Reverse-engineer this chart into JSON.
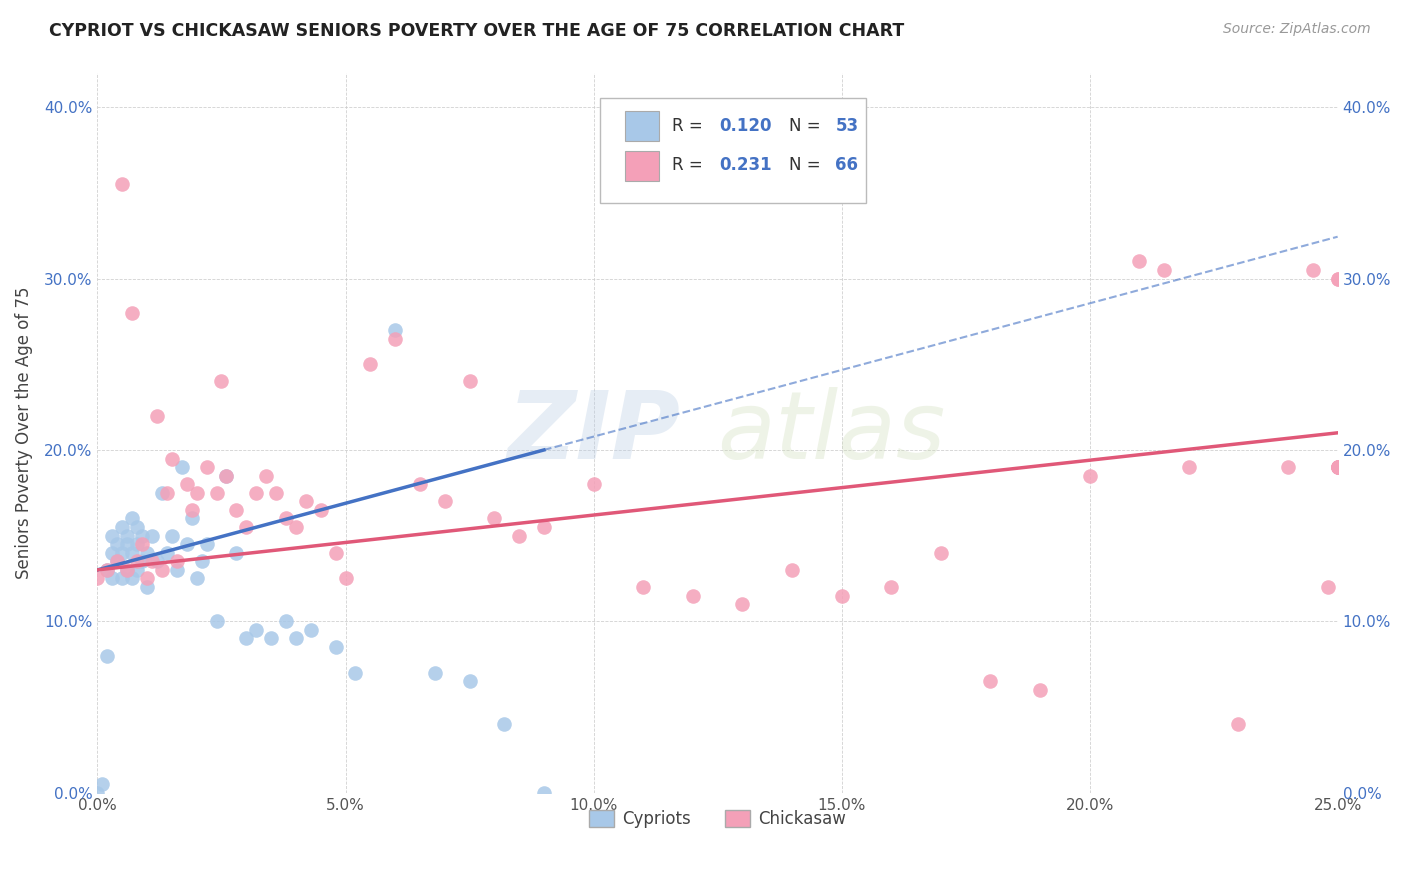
{
  "title": "CYPRIOT VS CHICKASAW SENIORS POVERTY OVER THE AGE OF 75 CORRELATION CHART",
  "source": "Source: ZipAtlas.com",
  "ylabel": "Seniors Poverty Over the Age of 75",
  "xlim": [
    0.0,
    0.25
  ],
  "ylim": [
    0.0,
    0.42
  ],
  "xticks": [
    0.0,
    0.05,
    0.1,
    0.15,
    0.2,
    0.25
  ],
  "yticks": [
    0.0,
    0.1,
    0.2,
    0.3,
    0.4
  ],
  "xtick_labels": [
    "0.0%",
    "5.0%",
    "10.0%",
    "15.0%",
    "20.0%",
    "25.0%"
  ],
  "ytick_labels": [
    "0.0%",
    "10.0%",
    "20.0%",
    "30.0%",
    "40.0%"
  ],
  "R_cypriot": 0.12,
  "N_cypriot": 53,
  "R_chickasaw": 0.231,
  "N_chickasaw": 66,
  "cypriot_color": "#a8c8e8",
  "chickasaw_color": "#f4a0b8",
  "trend_cypriot_color": "#4472c4",
  "trend_chickasaw_color": "#e05878",
  "watermark_zip": "ZIP",
  "watermark_atlas": "atlas",
  "background_color": "#ffffff",
  "cypriot_x": [
    0.0,
    0.001,
    0.002,
    0.002,
    0.003,
    0.003,
    0.003,
    0.004,
    0.004,
    0.005,
    0.005,
    0.005,
    0.006,
    0.006,
    0.006,
    0.007,
    0.007,
    0.007,
    0.008,
    0.008,
    0.008,
    0.009,
    0.009,
    0.01,
    0.01,
    0.011,
    0.012,
    0.013,
    0.014,
    0.015,
    0.016,
    0.017,
    0.018,
    0.019,
    0.02,
    0.021,
    0.022,
    0.024,
    0.026,
    0.028,
    0.03,
    0.032,
    0.035,
    0.038,
    0.04,
    0.043,
    0.048,
    0.052,
    0.06,
    0.068,
    0.075,
    0.082,
    0.09
  ],
  "cypriot_y": [
    0.0,
    0.005,
    0.08,
    0.13,
    0.14,
    0.15,
    0.125,
    0.145,
    0.135,
    0.125,
    0.14,
    0.155,
    0.145,
    0.13,
    0.15,
    0.14,
    0.125,
    0.16,
    0.13,
    0.145,
    0.155,
    0.135,
    0.15,
    0.14,
    0.12,
    0.15,
    0.135,
    0.175,
    0.14,
    0.15,
    0.13,
    0.19,
    0.145,
    0.16,
    0.125,
    0.135,
    0.145,
    0.1,
    0.185,
    0.14,
    0.09,
    0.095,
    0.09,
    0.1,
    0.09,
    0.095,
    0.085,
    0.07,
    0.27,
    0.07,
    0.065,
    0.04,
    0.0
  ],
  "chickasaw_x": [
    0.0,
    0.002,
    0.004,
    0.005,
    0.006,
    0.007,
    0.008,
    0.009,
    0.01,
    0.011,
    0.012,
    0.013,
    0.014,
    0.015,
    0.016,
    0.018,
    0.019,
    0.02,
    0.022,
    0.024,
    0.025,
    0.026,
    0.028,
    0.03,
    0.032,
    0.034,
    0.036,
    0.038,
    0.04,
    0.042,
    0.045,
    0.048,
    0.05,
    0.055,
    0.06,
    0.065,
    0.07,
    0.075,
    0.08,
    0.085,
    0.09,
    0.1,
    0.11,
    0.12,
    0.13,
    0.14,
    0.15,
    0.16,
    0.17,
    0.18,
    0.19,
    0.2,
    0.21,
    0.215,
    0.22,
    0.23,
    0.24,
    0.245,
    0.248,
    0.25,
    0.25,
    0.25,
    0.25,
    0.25,
    0.25,
    0.25
  ],
  "chickasaw_y": [
    0.125,
    0.13,
    0.135,
    0.355,
    0.13,
    0.28,
    0.135,
    0.145,
    0.125,
    0.135,
    0.22,
    0.13,
    0.175,
    0.195,
    0.135,
    0.18,
    0.165,
    0.175,
    0.19,
    0.175,
    0.24,
    0.185,
    0.165,
    0.155,
    0.175,
    0.185,
    0.175,
    0.16,
    0.155,
    0.17,
    0.165,
    0.14,
    0.125,
    0.25,
    0.265,
    0.18,
    0.17,
    0.24,
    0.16,
    0.15,
    0.155,
    0.18,
    0.12,
    0.115,
    0.11,
    0.13,
    0.115,
    0.12,
    0.14,
    0.065,
    0.06,
    0.185,
    0.31,
    0.305,
    0.19,
    0.04,
    0.19,
    0.305,
    0.12,
    0.19,
    0.19,
    0.19,
    0.19,
    0.19,
    0.3,
    0.3
  ]
}
